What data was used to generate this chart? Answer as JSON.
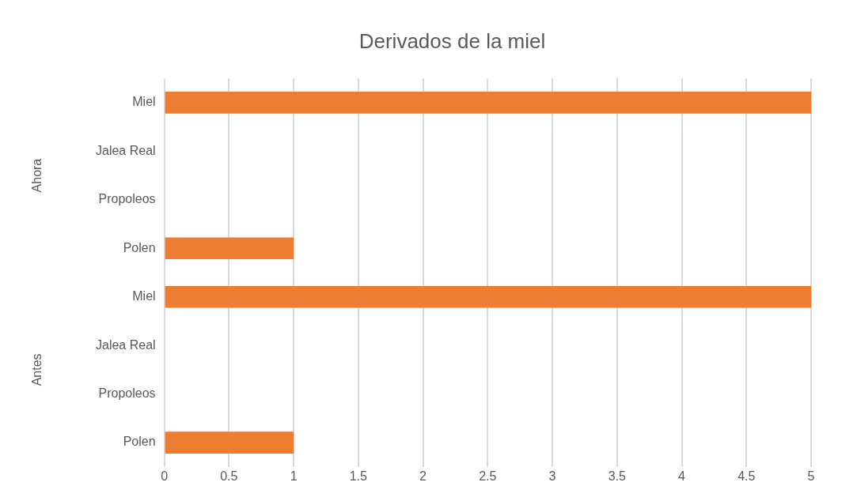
{
  "chart_data": {
    "type": "bar",
    "orientation": "horizontal",
    "title": "Derivados de la miel",
    "categories": [
      "Miel",
      "Jalea Real",
      "Propoleos",
      "Polen",
      "Miel",
      "Jalea Real",
      "Propoleos",
      "Polen"
    ],
    "values": [
      5,
      0,
      0,
      1,
      5,
      0,
      0,
      1
    ],
    "color": "#ed7d31",
    "xlim": [
      0,
      5
    ],
    "xticks": [
      0,
      0.5,
      1,
      1.5,
      2,
      2.5,
      3,
      3.5,
      4,
      4.5,
      5
    ],
    "grid": "x",
    "annotations": [
      "Ahora",
      "Antes"
    ]
  }
}
